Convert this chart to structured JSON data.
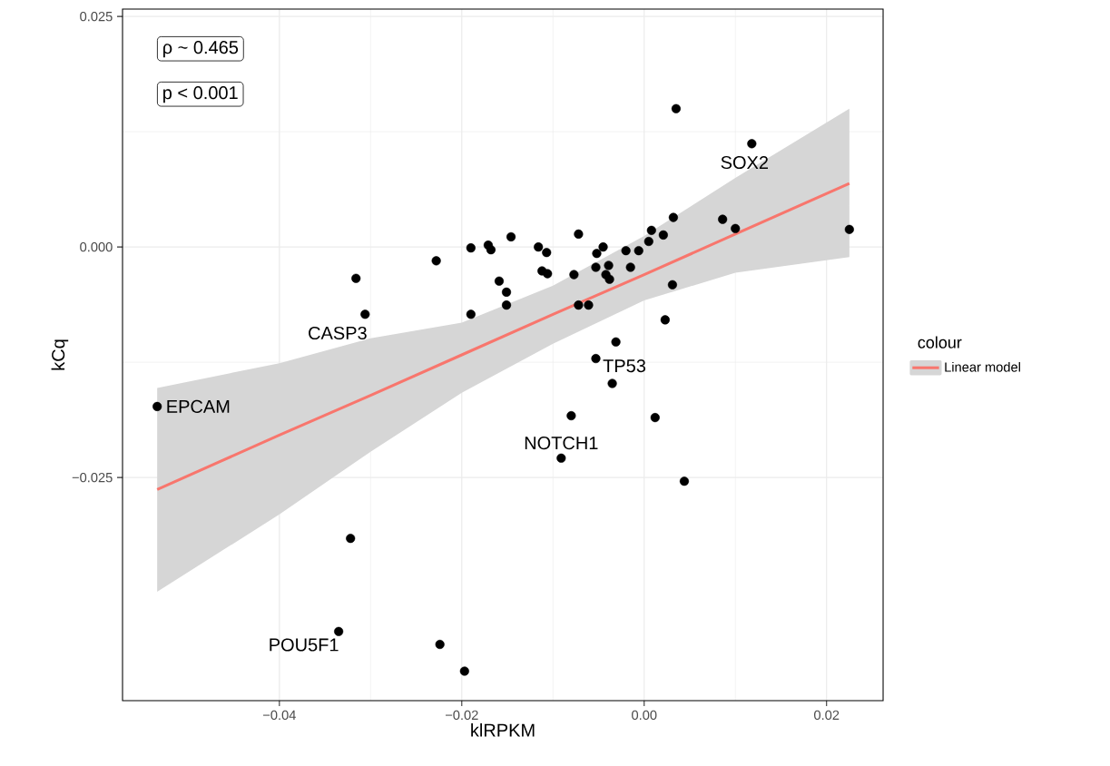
{
  "chart_data": {
    "type": "scatter",
    "xlabel": "klRPKM",
    "ylabel": "kCq",
    "legend_title": "colour",
    "xlim": [
      -0.0572,
      0.0262
    ],
    "ylim": [
      -0.0492,
      0.0258
    ],
    "xticks": [
      {
        "value": -0.04,
        "label": "−0.04"
      },
      {
        "value": -0.02,
        "label": "−0.02"
      },
      {
        "value": 0,
        "label": "0.00"
      },
      {
        "value": 0.02,
        "label": "0.02"
      }
    ],
    "yticks": [
      {
        "value": -0.025,
        "label": "−0.025"
      },
      {
        "value": 0,
        "label": "0.000"
      },
      {
        "value": 0.025,
        "label": "0.025"
      }
    ],
    "grid": true,
    "legend": "right",
    "series": [
      {
        "type": "line",
        "name": "Linear model",
        "color": "#f8766d",
        "marker": "none",
        "x": [
          -0.0534,
          -0.04,
          -0.03,
          -0.02,
          -0.01,
          0,
          0.01,
          0.0225
        ],
        "values": [
          -0.0263,
          -0.0204,
          -0.0161,
          -0.0117,
          -0.0073,
          -0.003,
          0.0014,
          0.0069
        ],
        "upper": [
          -0.0153,
          -0.0126,
          -0.0099,
          -0.0082,
          -0.0042,
          0.0012,
          0.0075,
          0.015
        ],
        "lower": [
          -0.0374,
          -0.029,
          -0.0222,
          -0.0158,
          -0.0105,
          -0.0058,
          -0.0028,
          -0.0011
        ]
      },
      {
        "color": "#000000",
        "marker": "circle",
        "x": [
          -0.0534,
          -0.0335,
          -0.0322,
          -0.0316,
          -0.0306,
          -0.0228,
          -0.0224,
          -0.0197,
          -0.019,
          -0.019,
          -0.0171,
          -0.0168,
          -0.0159,
          -0.0151,
          -0.0151,
          -0.0146,
          -0.0116,
          -0.0107,
          -0.0112,
          -0.0106,
          -0.0091,
          -0.008,
          -0.0077,
          -0.0072,
          -0.0072,
          -0.0061,
          -0.0053,
          -0.0053,
          -0.0052,
          -0.0045,
          -0.0042,
          -0.0039,
          -0.0038,
          -0.0035,
          -0.0031,
          -0.002,
          -0.0015,
          -0.0006,
          0.0005,
          0.0008,
          0.0012,
          0.0021,
          0.0023,
          0.0031,
          0.0032,
          0.0035,
          0.0044,
          0.0086,
          0.01,
          0.0118,
          0.0225
        ],
        "values": [
          -0.0173,
          -0.0417,
          -0.0316,
          -0.0034,
          -0.0073,
          -0.0015,
          -0.0431,
          -0.046,
          -0.0001,
          -0.0073,
          0.0002,
          -0.0003,
          -0.0037,
          -0.0049,
          -0.0063,
          0.0011,
          0.0,
          -0.0006,
          -0.0026,
          -0.0029,
          -0.0229,
          -0.0183,
          -0.003,
          0.0014,
          -0.0063,
          -0.0063,
          -0.0022,
          -0.0121,
          -0.0007,
          0.0,
          -0.003,
          -0.002,
          -0.0035,
          -0.0148,
          -0.0103,
          -0.0004,
          -0.0022,
          -0.0004,
          0.0006,
          0.0018,
          -0.0185,
          0.0013,
          -0.0079,
          -0.0041,
          0.0032,
          0.015,
          -0.0254,
          0.003,
          0.002,
          0.0112,
          0.0019
        ]
      }
    ],
    "annotations": [
      "ρ ~ 0.465",
      "p < 0.001",
      {
        "text": "EPCAM",
        "x": -0.0534,
        "y": -0.0173
      },
      {
        "text": "CASP3",
        "x": -0.0306,
        "y": -0.0073
      },
      {
        "text": "SOX2",
        "x": 0.0118,
        "y": 0.0112
      },
      {
        "text": "TP53",
        "x": -0.0053,
        "y": -0.0121
      },
      {
        "text": "NOTCH1",
        "x": -0.0091,
        "y": -0.0229
      },
      {
        "text": "POU5F1",
        "x": -0.0335,
        "y": -0.0417
      }
    ]
  }
}
